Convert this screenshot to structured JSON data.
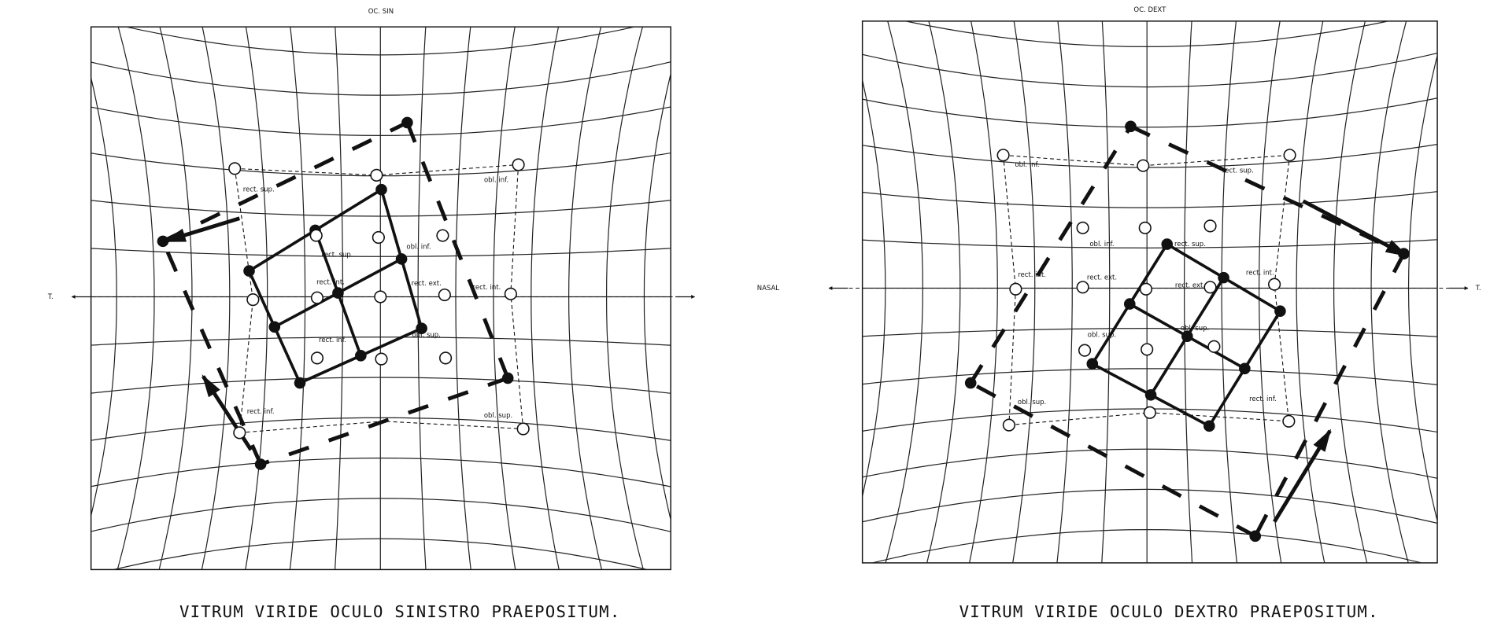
{
  "panels": [
    {
      "title": "OC. SIN",
      "left_axis_label": "T.",
      "caption": "VITRUM VIRIDE OCULO SINISTRO PRAEPOSITUM.",
      "labels": [
        "rect. sup.",
        "rect. sup.",
        "obl. inf.",
        "obl. inf.",
        "rect. int.",
        "rect. ext.",
        "rect. int.",
        "rect. inf.",
        "obl. sup.",
        "rect. inf.",
        "obl. sup."
      ]
    },
    {
      "title": "OC. DEXT",
      "left_axis_label": "NASAL",
      "right_axis_label": "T.",
      "caption": "VITRUM VIRIDE OCULO DEXTRO PRAEPOSITUM.",
      "labels": [
        "obl. inf.",
        "obl. inf.",
        "rect. sup.",
        "rect. sup.",
        "rect. int.",
        "rect. ext.",
        "rect. ext.",
        "rect. int.",
        "obl. sup.",
        "obl. sup.",
        "obl. sup.",
        "rect. inf."
      ]
    }
  ]
}
